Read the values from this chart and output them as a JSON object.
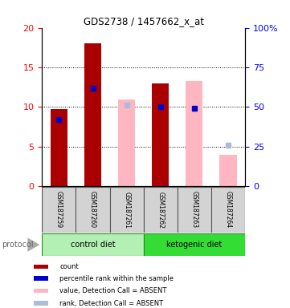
{
  "title": "GDS2738 / 1457662_x_at",
  "samples": [
    "GSM187259",
    "GSM187260",
    "GSM187261",
    "GSM187262",
    "GSM187263",
    "GSM187264"
  ],
  "count_values": [
    9.7,
    18.0,
    0,
    13.0,
    0,
    0
  ],
  "rank_values_pct": [
    42,
    62,
    0,
    50,
    49,
    0
  ],
  "absent_value": [
    0,
    0,
    11.0,
    0,
    13.3,
    4.0
  ],
  "absent_rank_pct": [
    0,
    0,
    51,
    0,
    0,
    26
  ],
  "ylim_left": [
    0,
    20
  ],
  "ylim_right": [
    0,
    100
  ],
  "yticks_left": [
    0,
    5,
    10,
    15,
    20
  ],
  "yticks_right": [
    0,
    25,
    50,
    75,
    100
  ],
  "bar_width": 0.5,
  "count_color": "#AA0000",
  "rank_color": "#0000CC",
  "absent_value_color": "#FFB6C1",
  "absent_rank_color": "#AABBDD",
  "legend_items": [
    {
      "label": "count",
      "color": "#AA0000"
    },
    {
      "label": "percentile rank within the sample",
      "color": "#0000CC"
    },
    {
      "label": "value, Detection Call = ABSENT",
      "color": "#FFB6C1"
    },
    {
      "label": "rank, Detection Call = ABSENT",
      "color": "#AABBDD"
    }
  ]
}
